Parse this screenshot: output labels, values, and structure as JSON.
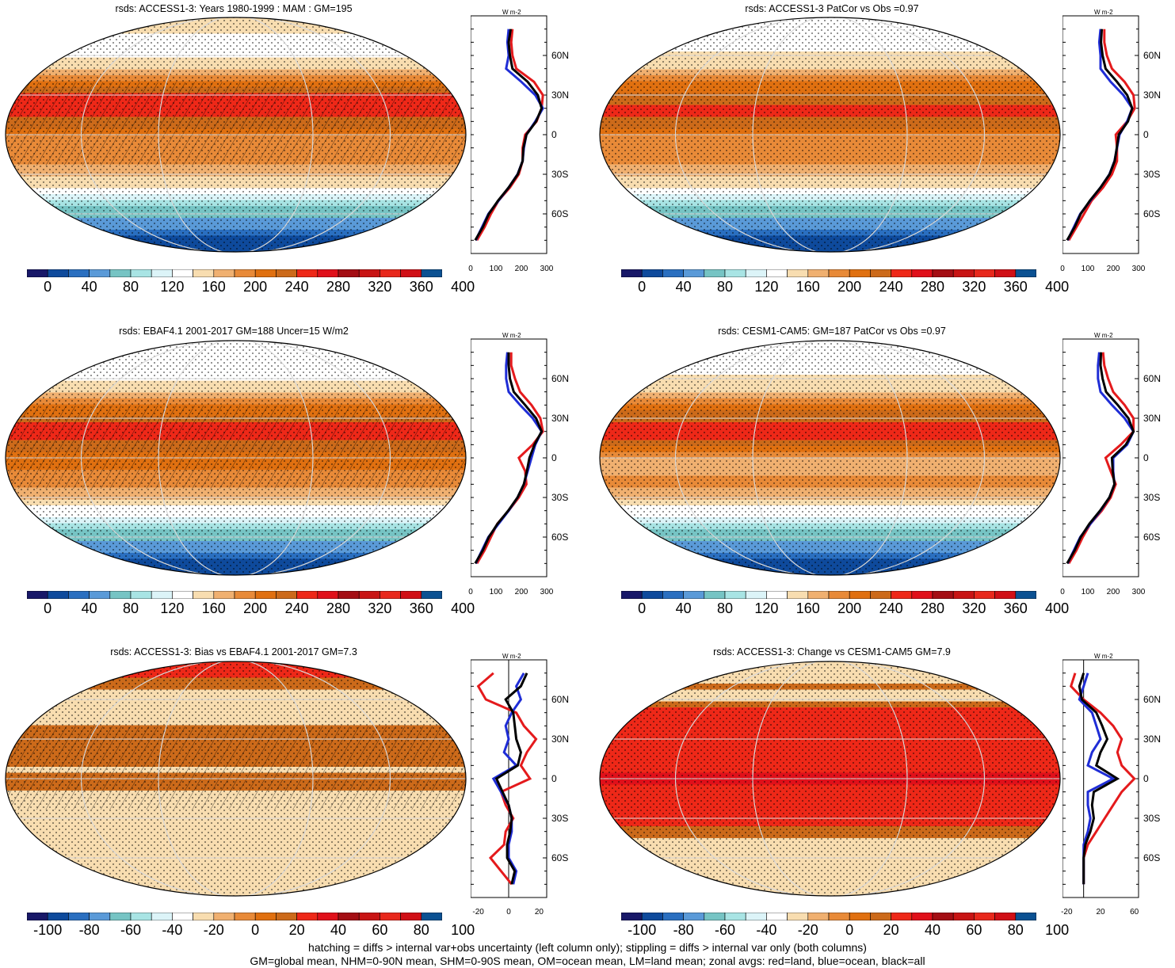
{
  "figure": {
    "footer_lines": [
      "hatching = diffs > internal var+obs uncertainty (left column only); stippling = diffs > internal var only (both columns)",
      "GM=global mean, NHM=0-90N mean, SHM=0-90S mean, OM=ocean mean, LM=land mean; zonal avgs: red=land, blue=ocean, black=all"
    ]
  },
  "colors": {
    "land_line": "#e41a1c",
    "ocean_line": "#1f2dd6",
    "all_line": "#000000",
    "abs_palette": [
      "#181868",
      "#0e4a9c",
      "#2a6fc0",
      "#5a9ad8",
      "#76c4c4",
      "#a8e4e4",
      "#dcf4f8",
      "#ffffff",
      "#f8ddb0",
      "#f0b070",
      "#e88a38",
      "#e07010",
      "#cc6a1a",
      "#ee2818",
      "#e0101a",
      "#a40e14",
      "#c81414",
      "#e8281c",
      "#d00f16",
      "#0b5192"
    ],
    "diff_palette": [
      "#181868",
      "#0e4a9c",
      "#2a6fc0",
      "#5a9ad8",
      "#76c4c4",
      "#a8e4e4",
      "#dcf4f8",
      "#ffffff",
      "#f8ddb0",
      "#f0b070",
      "#e88a38",
      "#e07010",
      "#cc6a1a",
      "#ee2818",
      "#e0101a",
      "#a40e14",
      "#c81414",
      "#e8281c",
      "#d00f16",
      "#0b5192"
    ]
  },
  "chart_data": [
    {
      "type": "heatmap",
      "title": "rsds: ACCESS1-3: Years 1980-1999 : MAM : GM=195",
      "colorbar_ticks": [
        "0",
        "40",
        "80",
        "120",
        "160",
        "200",
        "240",
        "280",
        "320",
        "360",
        "400"
      ],
      "zonal_xlabel": "W m-2",
      "zonal_xticks": [
        "0",
        "100",
        "200",
        "300"
      ],
      "zonal_xlim": [
        0,
        300
      ],
      "zonal_yticks": [
        "60N",
        "30N",
        "0",
        "30S",
        "60S"
      ],
      "hatching": true,
      "series": [
        {
          "name": "land",
          "lat": [
            80,
            70,
            60,
            50,
            40,
            30,
            20,
            10,
            0,
            -10,
            -20,
            -30,
            -40,
            -50,
            -60,
            -70,
            -80
          ],
          "values": [
            165,
            160,
            165,
            180,
            250,
            285,
            280,
            260,
            215,
            205,
            205,
            190,
            155,
            110,
            80,
            55,
            25
          ]
        },
        {
          "name": "ocean",
          "lat": [
            80,
            70,
            60,
            50,
            40,
            30,
            20,
            10,
            0,
            -10,
            -20,
            -30,
            -40,
            -50,
            -60,
            -70,
            -80
          ],
          "values": [
            150,
            145,
            150,
            140,
            200,
            255,
            285,
            255,
            220,
            210,
            205,
            185,
            150,
            110,
            70,
            45,
            20
          ]
        },
        {
          "name": "all",
          "lat": [
            80,
            70,
            60,
            50,
            40,
            30,
            20,
            10,
            0,
            -10,
            -20,
            -30,
            -40,
            -50,
            -60,
            -70,
            -80
          ],
          "values": [
            158,
            150,
            155,
            165,
            225,
            265,
            280,
            258,
            220,
            208,
            205,
            186,
            150,
            108,
            72,
            48,
            18
          ]
        }
      ]
    },
    {
      "type": "heatmap",
      "title": "rsds: ACCESS1-3 PatCor vs Obs =0.97",
      "colorbar_ticks": [
        "0",
        "40",
        "80",
        "120",
        "160",
        "200",
        "240",
        "280",
        "320",
        "360",
        "400"
      ],
      "zonal_xlabel": "W m-2",
      "zonal_xticks": [
        "0",
        "100",
        "200",
        "300"
      ],
      "zonal_xlim": [
        0,
        300
      ],
      "zonal_yticks": [
        "60N",
        "30N",
        "0",
        "30S",
        "60S"
      ],
      "hatching": false,
      "series": [
        {
          "name": "land",
          "lat": [
            80,
            70,
            60,
            50,
            40,
            30,
            20,
            10,
            0,
            -10,
            -20,
            -30,
            -40,
            -50,
            -60,
            -70,
            -80
          ],
          "values": [
            165,
            165,
            175,
            195,
            245,
            280,
            285,
            255,
            210,
            215,
            215,
            195,
            160,
            115,
            85,
            55,
            25
          ]
        },
        {
          "name": "ocean",
          "lat": [
            80,
            70,
            60,
            50,
            40,
            30,
            20,
            10,
            0,
            -10,
            -20,
            -30,
            -40,
            -50,
            -60,
            -70,
            -80
          ],
          "values": [
            150,
            145,
            150,
            150,
            190,
            240,
            275,
            255,
            225,
            215,
            205,
            185,
            150,
            110,
            70,
            45,
            20
          ]
        },
        {
          "name": "all",
          "lat": [
            80,
            70,
            60,
            50,
            40,
            30,
            20,
            10,
            0,
            -10,
            -20,
            -30,
            -40,
            -50,
            -60,
            -70,
            -80
          ],
          "values": [
            155,
            152,
            158,
            170,
            215,
            255,
            275,
            258,
            222,
            214,
            206,
            186,
            150,
            108,
            72,
            48,
            18
          ]
        }
      ]
    },
    {
      "type": "heatmap",
      "title": "rsds: EBAF4.1 2001-2017 GM=188 Uncer=15 W/m2",
      "colorbar_ticks": [
        "0",
        "40",
        "80",
        "120",
        "160",
        "200",
        "240",
        "280",
        "320",
        "360",
        "400"
      ],
      "zonal_xlabel": "W m-2",
      "zonal_xticks": [
        "0",
        "100",
        "200",
        "300"
      ],
      "zonal_xlim": [
        0,
        300
      ],
      "zonal_yticks": [
        "60N",
        "30N",
        "0",
        "30S",
        "60S"
      ],
      "hatching": true,
      "series": [
        {
          "name": "land",
          "lat": [
            80,
            70,
            60,
            50,
            40,
            30,
            20,
            10,
            0,
            -10,
            -20,
            -30,
            -40,
            -50,
            -60,
            -70,
            -80
          ],
          "values": [
            160,
            160,
            175,
            195,
            240,
            275,
            285,
            245,
            190,
            215,
            220,
            190,
            150,
            105,
            80,
            55,
            25
          ]
        },
        {
          "name": "ocean",
          "lat": [
            80,
            70,
            60,
            50,
            40,
            30,
            20,
            10,
            0,
            -10,
            -20,
            -30,
            -40,
            -50,
            -60,
            -70,
            -80
          ],
          "values": [
            145,
            140,
            140,
            150,
            195,
            245,
            280,
            255,
            240,
            225,
            210,
            185,
            150,
            110,
            70,
            45,
            20
          ]
        },
        {
          "name": "all",
          "lat": [
            80,
            70,
            60,
            50,
            40,
            30,
            20,
            10,
            0,
            -10,
            -20,
            -30,
            -40,
            -50,
            -60,
            -70,
            -80
          ],
          "values": [
            150,
            150,
            155,
            170,
            215,
            258,
            280,
            252,
            232,
            222,
            210,
            185,
            148,
            106,
            72,
            48,
            18
          ]
        }
      ]
    },
    {
      "type": "heatmap",
      "title": "rsds: CESM1-CAM5: GM=187 PatCor vs Obs =0.97",
      "colorbar_ticks": [
        "0",
        "40",
        "80",
        "120",
        "160",
        "200",
        "240",
        "280",
        "320",
        "360",
        "400"
      ],
      "zonal_xlabel": "W m-2",
      "zonal_xticks": [
        "0",
        "100",
        "200",
        "300"
      ],
      "zonal_xlim": [
        0,
        300
      ],
      "zonal_yticks": [
        "60N",
        "30N",
        "0",
        "30S",
        "60S"
      ],
      "hatching": false,
      "series": [
        {
          "name": "land",
          "lat": [
            80,
            70,
            60,
            50,
            40,
            30,
            20,
            10,
            0,
            -10,
            -20,
            -30,
            -40,
            -50,
            -60,
            -70,
            -80
          ],
          "values": [
            160,
            165,
            180,
            200,
            245,
            280,
            280,
            230,
            170,
            190,
            210,
            190,
            155,
            110,
            80,
            55,
            25
          ]
        },
        {
          "name": "ocean",
          "lat": [
            80,
            70,
            60,
            50,
            40,
            30,
            20,
            10,
            0,
            -10,
            -20,
            -30,
            -40,
            -50,
            -60,
            -70,
            -80
          ],
          "values": [
            145,
            140,
            140,
            150,
            195,
            245,
            280,
            255,
            200,
            200,
            205,
            185,
            150,
            110,
            70,
            45,
            20
          ]
        },
        {
          "name": "all",
          "lat": [
            80,
            70,
            60,
            50,
            40,
            30,
            20,
            10,
            0,
            -10,
            -20,
            -30,
            -40,
            -50,
            -60,
            -70,
            -80
          ],
          "values": [
            152,
            150,
            158,
            172,
            218,
            260,
            280,
            250,
            195,
            198,
            205,
            185,
            148,
            106,
            72,
            48,
            18
          ]
        }
      ]
    },
    {
      "type": "heatmap",
      "title": "rsds: ACCESS1-3: Bias vs EBAF4.1 2001-2017 GM=7.3",
      "colorbar_ticks": [
        "-100",
        "-80",
        "-60",
        "-40",
        "-20",
        "0",
        "20",
        "40",
        "60",
        "80",
        "100"
      ],
      "zonal_xlabel": "W m-2",
      "zonal_xticks": [
        "-20",
        "0",
        "20"
      ],
      "zonal_xlim": [
        -25,
        25
      ],
      "zonal_yticks": [
        "60N",
        "30N",
        "0",
        "30S",
        "60S"
      ],
      "hatching": true,
      "series": [
        {
          "name": "land",
          "lat": [
            80,
            70,
            60,
            50,
            40,
            30,
            20,
            10,
            0,
            -10,
            -20,
            -30,
            -40,
            -50,
            -60,
            -70,
            -80
          ],
          "values": [
            -10,
            -20,
            -15,
            5,
            10,
            18,
            12,
            8,
            14,
            -5,
            -2,
            3,
            -2,
            -3,
            -12,
            -5,
            2
          ]
        },
        {
          "name": "ocean",
          "lat": [
            80,
            70,
            60,
            50,
            40,
            30,
            20,
            10,
            0,
            -10,
            -20,
            -30,
            -40,
            -50,
            -60,
            -70,
            -80
          ],
          "values": [
            10,
            5,
            8,
            2,
            -2,
            0,
            -3,
            5,
            -10,
            -5,
            0,
            2,
            2,
            0,
            0,
            5,
            3
          ]
        },
        {
          "name": "all",
          "lat": [
            80,
            70,
            60,
            50,
            40,
            30,
            20,
            10,
            0,
            -10,
            -20,
            -30,
            -40,
            -50,
            -60,
            -70,
            -80
          ],
          "values": [
            12,
            8,
            -2,
            3,
            4,
            5,
            8,
            6,
            -8,
            -4,
            0,
            2,
            1,
            -1,
            -1,
            4,
            2
          ]
        }
      ]
    },
    {
      "type": "heatmap",
      "title": "rsds: ACCESS1-3: Change vs CESM1-CAM5 GM=7.9",
      "colorbar_ticks": [
        "-100",
        "-80",
        "-60",
        "-40",
        "-20",
        "0",
        "20",
        "40",
        "60",
        "80",
        "100"
      ],
      "zonal_xlabel": "W m-2",
      "zonal_xticks": [
        "-20",
        "20",
        "60"
      ],
      "zonal_xlim": [
        -25,
        65
      ],
      "zonal_yticks": [
        "60N",
        "30N",
        "0",
        "30S",
        "60S"
      ],
      "hatching": false,
      "series": [
        {
          "name": "land",
          "lat": [
            80,
            70,
            60,
            50,
            40,
            30,
            20,
            10,
            0,
            -10,
            -20,
            -30,
            -40,
            -50,
            -60,
            -70,
            -80
          ],
          "values": [
            -10,
            -15,
            0,
            20,
            35,
            45,
            40,
            45,
            60,
            45,
            35,
            25,
            15,
            5,
            0,
            0,
            0
          ]
        },
        {
          "name": "ocean",
          "lat": [
            80,
            70,
            60,
            50,
            40,
            30,
            20,
            10,
            0,
            -10,
            -20,
            -30,
            -40,
            -50,
            -60,
            -70,
            -80
          ],
          "values": [
            5,
            0,
            -5,
            10,
            15,
            20,
            10,
            5,
            35,
            5,
            5,
            8,
            5,
            0,
            0,
            0,
            0
          ]
        },
        {
          "name": "all",
          "lat": [
            80,
            70,
            60,
            50,
            40,
            30,
            20,
            10,
            0,
            -10,
            -20,
            -30,
            -40,
            -50,
            -60,
            -70,
            -80
          ],
          "values": [
            0,
            -5,
            -2,
            15,
            22,
            28,
            20,
            15,
            40,
            12,
            10,
            12,
            8,
            2,
            0,
            0,
            0
          ]
        }
      ]
    }
  ]
}
